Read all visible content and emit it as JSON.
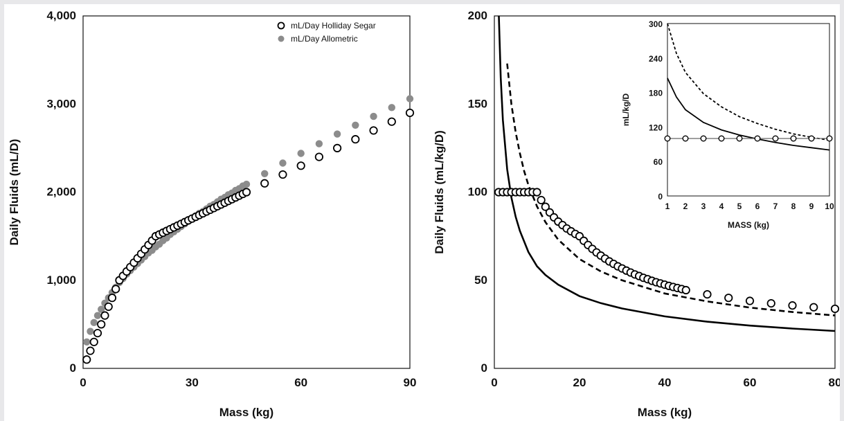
{
  "colors": {
    "holliday": "#000000",
    "allometric": "#8c8c8c",
    "background": "#ffffff",
    "frame": "#e8e8ea"
  },
  "chart_data": [
    {
      "type": "scatter",
      "title": "",
      "xlabel": "Mass (kg)",
      "ylabel": "Daily Fluids (mL/D)",
      "xlim": [
        0,
        90
      ],
      "ylim": [
        0,
        4000
      ],
      "xticks": [
        0,
        30,
        60,
        90
      ],
      "xtick_labels": [
        "0",
        "30",
        "60",
        "90"
      ],
      "yticks": [
        0,
        1000,
        2000,
        3000,
        4000
      ],
      "ytick_labels": [
        "0",
        "1,000",
        "2,000",
        "3,000",
        "4,000"
      ],
      "legend_position": "top-right",
      "series": [
        {
          "name": "mL/Day Holliday Segar",
          "marker": "open-circle",
          "points": [
            [
              1,
              100
            ],
            [
              2,
              200
            ],
            [
              3,
              300
            ],
            [
              4,
              400
            ],
            [
              5,
              500
            ],
            [
              6,
              600
            ],
            [
              7,
              700
            ],
            [
              8,
              800
            ],
            [
              9,
              900
            ],
            [
              10,
              1000
            ],
            [
              11,
              1050
            ],
            [
              12,
              1100
            ],
            [
              13,
              1150
            ],
            [
              14,
              1200
            ],
            [
              15,
              1250
            ],
            [
              16,
              1300
            ],
            [
              17,
              1350
            ],
            [
              18,
              1400
            ],
            [
              19,
              1450
            ],
            [
              20,
              1500
            ],
            [
              21,
              1520
            ],
            [
              22,
              1540
            ],
            [
              23,
              1560
            ],
            [
              24,
              1580
            ],
            [
              25,
              1600
            ],
            [
              26,
              1620
            ],
            [
              27,
              1640
            ],
            [
              28,
              1660
            ],
            [
              29,
              1680
            ],
            [
              30,
              1700
            ],
            [
              31,
              1720
            ],
            [
              32,
              1740
            ],
            [
              33,
              1760
            ],
            [
              34,
              1780
            ],
            [
              35,
              1800
            ],
            [
              36,
              1820
            ],
            [
              37,
              1840
            ],
            [
              38,
              1860
            ],
            [
              39,
              1880
            ],
            [
              40,
              1900
            ],
            [
              41,
              1920
            ],
            [
              42,
              1940
            ],
            [
              43,
              1960
            ],
            [
              44,
              1980
            ],
            [
              45,
              2000
            ],
            [
              50,
              2100
            ],
            [
              55,
              2200
            ],
            [
              60,
              2300
            ],
            [
              65,
              2400
            ],
            [
              70,
              2500
            ],
            [
              75,
              2600
            ],
            [
              80,
              2700
            ],
            [
              85,
              2800
            ],
            [
              90,
              2900
            ]
          ]
        },
        {
          "name": "mL/Day Allometric",
          "marker": "filled-circle",
          "points": [
            [
              1,
              300
            ],
            [
              2,
              420
            ],
            [
              3,
              520
            ],
            [
              4,
              600
            ],
            [
              5,
              670
            ],
            [
              6,
              740
            ],
            [
              7,
              800
            ],
            [
              8,
              860
            ],
            [
              9,
              920
            ],
            [
              10,
              975
            ],
            [
              11,
              1020
            ],
            [
              12,
              1070
            ],
            [
              13,
              1110
            ],
            [
              14,
              1150
            ],
            [
              15,
              1190
            ],
            [
              16,
              1230
            ],
            [
              17,
              1270
            ],
            [
              18,
              1310
            ],
            [
              19,
              1340
            ],
            [
              20,
              1380
            ],
            [
              21,
              1410
            ],
            [
              22,
              1450
            ],
            [
              23,
              1480
            ],
            [
              24,
              1520
            ],
            [
              25,
              1550
            ],
            [
              26,
              1580
            ],
            [
              27,
              1610
            ],
            [
              28,
              1640
            ],
            [
              29,
              1670
            ],
            [
              30,
              1700
            ],
            [
              31,
              1730
            ],
            [
              32,
              1760
            ],
            [
              33,
              1780
            ],
            [
              34,
              1810
            ],
            [
              35,
              1840
            ],
            [
              36,
              1860
            ],
            [
              37,
              1890
            ],
            [
              38,
              1920
            ],
            [
              39,
              1940
            ],
            [
              40,
              1970
            ],
            [
              41,
              1990
            ],
            [
              42,
              2020
            ],
            [
              43,
              2040
            ],
            [
              44,
              2070
            ],
            [
              45,
              2090
            ],
            [
              50,
              2210
            ],
            [
              55,
              2330
            ],
            [
              60,
              2440
            ],
            [
              65,
              2550
            ],
            [
              70,
              2660
            ],
            [
              75,
              2760
            ],
            [
              80,
              2860
            ],
            [
              85,
              2960
            ],
            [
              90,
              3060
            ]
          ]
        }
      ]
    },
    {
      "type": "line",
      "title": "",
      "xlabel": "Mass (kg)",
      "ylabel": "Daily Fluids (mL/kg/D)",
      "xlim": [
        0,
        80
      ],
      "ylim": [
        0,
        200
      ],
      "xticks": [
        0,
        20,
        40,
        60,
        80
      ],
      "xtick_labels": [
        "0",
        "20",
        "40",
        "60",
        "80"
      ],
      "yticks": [
        0,
        50,
        100,
        150,
        200
      ],
      "ytick_labels": [
        "0",
        "50",
        "100",
        "150",
        "200"
      ],
      "series": [
        {
          "style": "open-circle",
          "points": [
            [
              1,
              100
            ],
            [
              2,
              100
            ],
            [
              3,
              100
            ],
            [
              4,
              100
            ],
            [
              5,
              100
            ],
            [
              6,
              100
            ],
            [
              7,
              100
            ],
            [
              8,
              100
            ],
            [
              9,
              100
            ],
            [
              10,
              100
            ],
            [
              11,
              95.5
            ],
            [
              12,
              91.7
            ],
            [
              13,
              88.5
            ],
            [
              14,
              85.7
            ],
            [
              15,
              83.3
            ],
            [
              16,
              81.3
            ],
            [
              17,
              79.4
            ],
            [
              18,
              77.8
            ],
            [
              19,
              76.3
            ],
            [
              20,
              75
            ],
            [
              21,
              72.4
            ],
            [
              22,
              70
            ],
            [
              23,
              67.8
            ],
            [
              24,
              65.8
            ],
            [
              25,
              64
            ],
            [
              26,
              62.3
            ],
            [
              27,
              60.7
            ],
            [
              28,
              59.3
            ],
            [
              29,
              57.9
            ],
            [
              30,
              56.7
            ],
            [
              31,
              55.5
            ],
            [
              32,
              54.4
            ],
            [
              33,
              53.3
            ],
            [
              34,
              52.4
            ],
            [
              35,
              51.4
            ],
            [
              36,
              50.6
            ],
            [
              37,
              49.7
            ],
            [
              38,
              48.9
            ],
            [
              39,
              48.2
            ],
            [
              40,
              47.5
            ],
            [
              41,
              46.8
            ],
            [
              42,
              46.2
            ],
            [
              43,
              45.6
            ],
            [
              44,
              45
            ],
            [
              45,
              44.4
            ],
            [
              50,
              42
            ],
            [
              55,
              40
            ],
            [
              60,
              38.3
            ],
            [
              65,
              36.9
            ],
            [
              70,
              35.7
            ],
            [
              75,
              34.7
            ],
            [
              80,
              33.8
            ]
          ]
        },
        {
          "style": "solid",
          "points": [
            [
              1,
              205
            ],
            [
              1.5,
              165
            ],
            [
              2,
              141
            ],
            [
              3,
              113
            ],
            [
              4,
              97
            ],
            [
              5,
              86
            ],
            [
              6,
              78
            ],
            [
              8,
              66
            ],
            [
              10,
              58
            ],
            [
              12,
              53
            ],
            [
              15,
              47.5
            ],
            [
              20,
              41
            ],
            [
              25,
              37
            ],
            [
              30,
              34
            ],
            [
              40,
              29.5
            ],
            [
              50,
              26.5
            ],
            [
              60,
              24.3
            ],
            [
              70,
              22.6
            ],
            [
              80,
              21.2
            ]
          ]
        },
        {
          "style": "dashed",
          "points": [
            [
              3,
              173
            ],
            [
              4,
              150
            ],
            [
              5,
              134
            ],
            [
              6,
              122
            ],
            [
              7,
              112
            ],
            [
              8,
              104
            ],
            [
              10,
              92
            ],
            [
              12,
              83
            ],
            [
              15,
              73
            ],
            [
              20,
              62
            ],
            [
              25,
              55
            ],
            [
              30,
              50
            ],
            [
              40,
              42.5
            ],
            [
              50,
              38
            ],
            [
              60,
              34.5
            ],
            [
              70,
              32
            ],
            [
              80,
              30
            ]
          ]
        }
      ]
    },
    {
      "type": "line",
      "title": "",
      "xlabel": "MASS (kg)",
      "ylabel": "mL/kg/D",
      "xlim": [
        1,
        10
      ],
      "ylim": [
        0,
        300
      ],
      "xticks": [
        1,
        2,
        3,
        4,
        5,
        6,
        7,
        8,
        9,
        10
      ],
      "xtick_labels": [
        "1",
        "2",
        "3",
        "4",
        "5",
        "6",
        "7",
        "8",
        "9",
        "10"
      ],
      "yticks": [
        0,
        60,
        120,
        180,
        240,
        300
      ],
      "ytick_labels": [
        "0",
        "60",
        "120",
        "180",
        "240",
        "300"
      ],
      "series": [
        {
          "style": "open-circle-line",
          "points": [
            [
              1,
              100
            ],
            [
              2,
              100
            ],
            [
              3,
              100
            ],
            [
              4,
              100
            ],
            [
              5,
              100
            ],
            [
              6,
              100
            ],
            [
              7,
              100
            ],
            [
              8,
              100
            ],
            [
              9,
              100
            ],
            [
              10,
              100
            ]
          ]
        },
        {
          "style": "solid",
          "points": [
            [
              1,
              205
            ],
            [
              1.5,
              172
            ],
            [
              2,
              150
            ],
            [
              3,
              128
            ],
            [
              4,
              115
            ],
            [
              5,
              106
            ],
            [
              6,
              99
            ],
            [
              7,
              93
            ],
            [
              8,
              88
            ],
            [
              9,
              84
            ],
            [
              10,
              80
            ]
          ]
        },
        {
          "style": "dashed",
          "points": [
            [
              1,
              300
            ],
            [
              1.5,
              248
            ],
            [
              2,
              215
            ],
            [
              3,
              178
            ],
            [
              4,
              155
            ],
            [
              5,
              138
            ],
            [
              6,
              126
            ],
            [
              7,
              116
            ],
            [
              8,
              108
            ],
            [
              9,
              102
            ],
            [
              10,
              97
            ]
          ]
        }
      ]
    }
  ]
}
